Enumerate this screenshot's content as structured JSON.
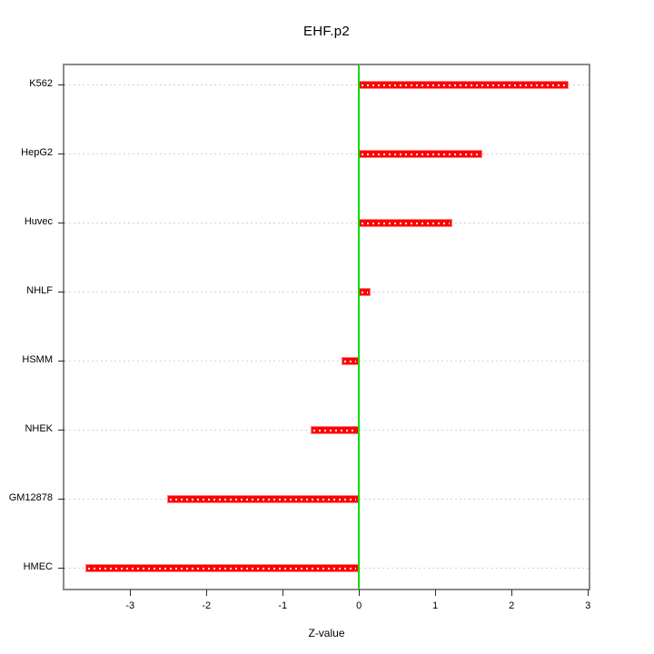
{
  "title": "EHF.p2",
  "chart_data": {
    "type": "bar",
    "orientation": "horizontal",
    "title": "EHF.p2",
    "xlabel": "Z-value",
    "ylabel": "",
    "categories": [
      "K562",
      "HepG2",
      "Huvec",
      "NHLF",
      "HSMM",
      "NHEK",
      "GM12878",
      "HMEC"
    ],
    "values": [
      2.75,
      1.62,
      1.23,
      0.15,
      -0.23,
      -0.63,
      -2.52,
      -3.59
    ],
    "xlim": [
      -3.86,
      3.01
    ],
    "xticks": [
      -3,
      -2,
      -1,
      0,
      1,
      2,
      3
    ],
    "xtick_labels": [
      "-3",
      "-2",
      "-1",
      "0",
      "1",
      "2",
      "3"
    ],
    "zero_reference_line": 0,
    "grid": "dotted horizontal line per category",
    "legend": "none",
    "colors": {
      "bar": "#ff0000",
      "bar_edge": "#ff8080",
      "bar_center_dashes": "#ffffff",
      "zero_line": "#00dd00",
      "gridline": "#d2d2d2",
      "box_border": "#8a8a8a",
      "tick": "#2b2b2b",
      "text": "#000000",
      "background": "#ffffff"
    }
  }
}
